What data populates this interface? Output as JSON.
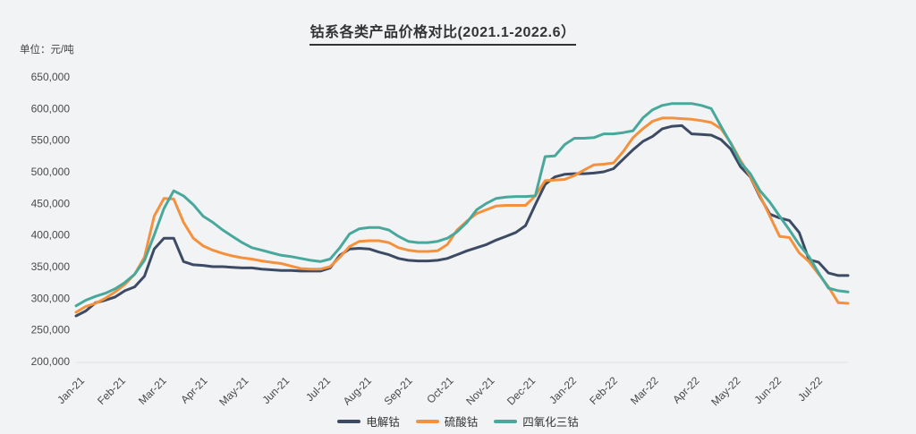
{
  "page": {
    "background_color": "#f2f3f5"
  },
  "title": "钴系各类产品价格对比(2021.1-2022.6）",
  "unit_label": "单位：元/吨",
  "chart_data": {
    "type": "line",
    "title": "钴系各类产品价格对比(2021.1-2022.6）",
    "ylabel": "单位：元/吨",
    "xlabel": "",
    "unit": "元/吨",
    "ylim": [
      200000,
      650000
    ],
    "y_tick_step": 50000,
    "y_tick_labels": [
      "650,000",
      "600,000",
      "550,000",
      "500,000",
      "450,000",
      "400,000",
      "350,000",
      "300,000",
      "250,000",
      "200,000"
    ],
    "y_tick_values": [
      650000,
      600000,
      550000,
      500000,
      450000,
      400000,
      350000,
      300000,
      250000,
      200000
    ],
    "x_tick_labels": [
      "Jan-21",
      "Feb-21",
      "Mar-21",
      "Apr-21",
      "May-21",
      "Jun-21",
      "Jul-21",
      "Aug-21",
      "Sep-21",
      "Oct-21",
      "Nov-21",
      "Dec-21",
      "Jan-22",
      "Feb-22",
      "Mar-22",
      "Apr-22",
      "May-22",
      "Jun-22",
      "Jul-22"
    ],
    "x_label_rotation_deg": 45,
    "sampling": "weekly",
    "grid": "baseline-only",
    "legend_position": "bottom-center",
    "line_width": 3,
    "baseline_color": "#dfe0e3",
    "series": [
      {
        "name": "电解钴",
        "color": "#3c4b63",
        "values": [
          272000,
          280000,
          293000,
          297000,
          302000,
          312000,
          318000,
          335000,
          378000,
          395000,
          395000,
          358000,
          353000,
          352000,
          350000,
          350000,
          349000,
          348000,
          348000,
          346000,
          345000,
          344000,
          344000,
          343000,
          343000,
          343000,
          348000,
          368000,
          378000,
          379000,
          378000,
          373000,
          369000,
          363000,
          360000,
          359000,
          359000,
          360000,
          363000,
          369000,
          375000,
          380000,
          385000,
          392000,
          398000,
          404000,
          415000,
          448000,
          480000,
          492000,
          496000,
          497000,
          497000,
          498000,
          500000,
          505000,
          520000,
          535000,
          548000,
          556000,
          568000,
          572000,
          573000,
          560000,
          559000,
          558000,
          551000,
          536000,
          508000,
          492000,
          460000,
          433000,
          427000,
          423000,
          404000,
          361000,
          357000,
          340000,
          336000,
          336000
        ]
      },
      {
        "name": "硫酸钴",
        "color": "#f5913d",
        "values": [
          278000,
          287000,
          292000,
          300000,
          310000,
          322000,
          338000,
          365000,
          430000,
          458000,
          457000,
          420000,
          395000,
          383000,
          376000,
          371000,
          367000,
          364000,
          362000,
          359000,
          357000,
          355000,
          351000,
          347000,
          346000,
          346000,
          350000,
          365000,
          382000,
          390000,
          391000,
          391000,
          388000,
          380000,
          376000,
          374000,
          374000,
          375000,
          385000,
          408000,
          422000,
          434000,
          440000,
          446000,
          447000,
          447000,
          447000,
          462000,
          486000,
          487000,
          488000,
          494000,
          503000,
          511000,
          512000,
          514000,
          532000,
          554000,
          568000,
          580000,
          585000,
          585000,
          584000,
          583000,
          581000,
          578000,
          568000,
          546000,
          518000,
          493000,
          462000,
          430000,
          398000,
          396000,
          372000,
          358000,
          338000,
          318000,
          293000,
          292000
        ]
      },
      {
        "name": "四氧化三钴",
        "color": "#48a89c",
        "values": [
          288000,
          297000,
          303000,
          308000,
          315000,
          325000,
          338000,
          360000,
          400000,
          442000,
          470000,
          462000,
          448000,
          430000,
          420000,
          408000,
          398000,
          388000,
          380000,
          376000,
          372000,
          368000,
          366000,
          363000,
          360000,
          358000,
          362000,
          380000,
          402000,
          410000,
          412000,
          412000,
          408000,
          398000,
          390000,
          388000,
          388000,
          390000,
          395000,
          405000,
          420000,
          440000,
          450000,
          458000,
          460000,
          461000,
          461000,
          462000,
          524000,
          525000,
          543000,
          553000,
          553000,
          554000,
          560000,
          560000,
          562000,
          565000,
          585000,
          598000,
          605000,
          608000,
          608000,
          608000,
          605000,
          600000,
          572000,
          545000,
          515000,
          497000,
          470000,
          452000,
          430000,
          408000,
          385000,
          366000,
          340000,
          316000,
          312000,
          310000
        ]
      }
    ]
  }
}
